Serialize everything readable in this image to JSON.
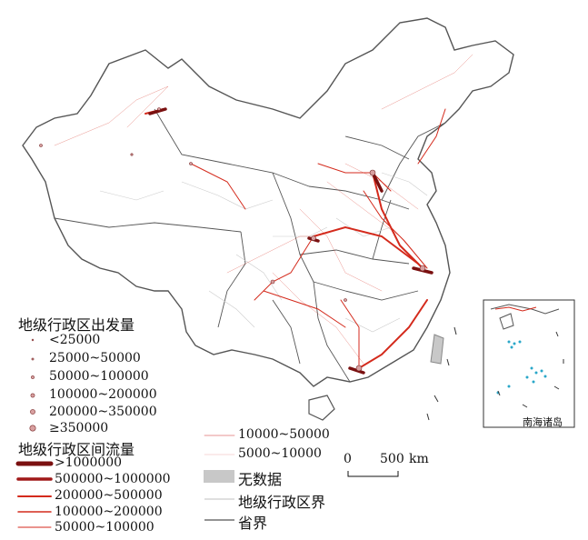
{
  "legend_origin": {
    "title": "地级行政区出发量",
    "items": [
      "<25000",
      "25000~50000",
      "50000~100000",
      "100000~200000",
      "200000~350000",
      "≥350000"
    ]
  },
  "legend_flow": {
    "title": "地级行政区间流量",
    "items": [
      ">1000000",
      "500000~1000000",
      "200000~500000",
      "100000~200000",
      "50000~100000",
      "10000~50000",
      "5000~10000"
    ]
  },
  "legend_other": {
    "nodata": "无数据",
    "city_boundary": "地级行政区界",
    "province_boundary": "省界"
  },
  "scale_bar": {
    "zero": "0",
    "value": "500",
    "unit": "km"
  },
  "inset": {
    "label": "南海诸岛"
  },
  "colors": {
    "flow": "#d42a1c",
    "flow_dark": "#7a1010",
    "boundary_city": "#cccccc",
    "boundary_province": "#555555",
    "nodata": "#c8c8c8",
    "islands": "#2aa7c9"
  }
}
